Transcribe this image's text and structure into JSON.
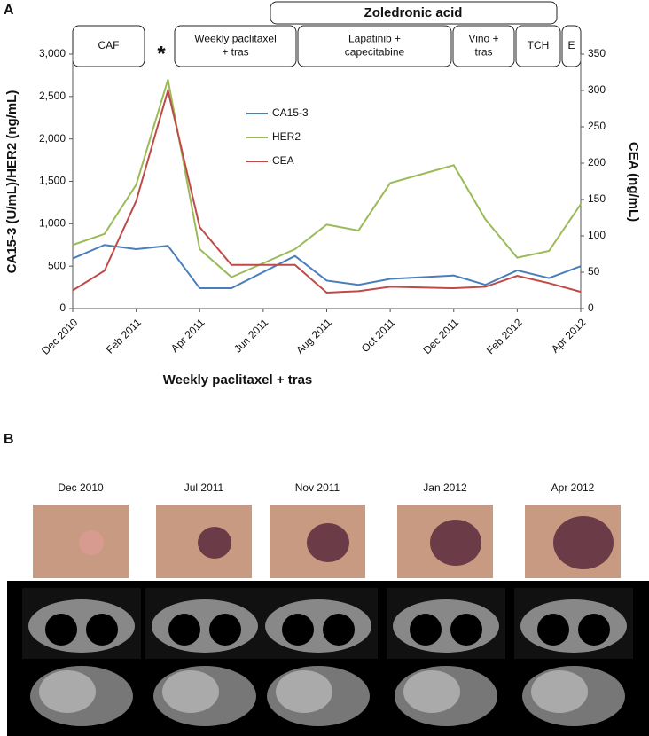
{
  "chart_data": {
    "type": "line",
    "panel_label": "A",
    "x_label": "Weekly paclitaxel + tras",
    "y_label": "CA15-3 (U/mL)/HER2 (ng/mL)",
    "y2_label": "CEA (ng/mL)",
    "regimen_bar": "Zoledronic acid",
    "marker": "*",
    "regimens": [
      [
        "CAF"
      ],
      [
        "Weekly paclitaxel",
        "+ tras"
      ],
      [
        "Lapatinib +",
        "capecitabine"
      ],
      [
        "Vino +",
        "tras"
      ],
      [
        "TCH"
      ],
      [
        "E"
      ]
    ],
    "x": [
      "2010-12",
      "2011-01",
      "2011-02",
      "2011-03",
      "2011-04",
      "2011-05",
      "2011-07",
      "2011-08",
      "2011-09",
      "2011-10",
      "2011-12",
      "2012-01",
      "2012-02",
      "2012-03",
      "2012-04"
    ],
    "xlim": [
      "2010-12",
      "2012-04"
    ],
    "xticks": [
      {
        "value": "2010-12",
        "label": "Dec 2010"
      },
      {
        "value": "2011-02",
        "label": "Feb 2011"
      },
      {
        "value": "2011-04",
        "label": "Apr 2011"
      },
      {
        "value": "2011-06",
        "label": "Jun 2011"
      },
      {
        "value": "2011-08",
        "label": "Aug 2011"
      },
      {
        "value": "2011-10",
        "label": "Oct 2011"
      },
      {
        "value": "2011-12",
        "label": "Dec 2011"
      },
      {
        "value": "2012-02",
        "label": "Feb 2012"
      },
      {
        "value": "2012-04",
        "label": "Apr 2012"
      }
    ],
    "ylim": [
      0,
      3000
    ],
    "yticks": [
      0,
      500,
      {
        "value": 1000,
        "label": "1,000"
      },
      {
        "value": 1500,
        "label": "1,500"
      },
      {
        "value": 2000,
        "label": "2,000"
      },
      {
        "value": 2500,
        "label": "2,500"
      },
      {
        "value": 3000,
        "label": "3,000"
      }
    ],
    "y2lim": [
      0,
      350
    ],
    "y2ticks": [
      0,
      50,
      100,
      150,
      200,
      250,
      300,
      350
    ],
    "series": [
      {
        "name": "CA15-3",
        "color": "#4a7ebb",
        "values": [
          590,
          750,
          700,
          740,
          240,
          240,
          620,
          330,
          280,
          350,
          390,
          280,
          450,
          360,
          500
        ]
      },
      {
        "name": "HER2",
        "color": "#9bbb59",
        "values": [
          750,
          880,
          1460,
          2700,
          700,
          370,
          700,
          990,
          920,
          1480,
          1690,
          1050,
          600,
          680,
          1230
        ]
      },
      {
        "name": "CEA",
        "color": "#be4b48",
        "axis": "y2",
        "values": [
          25,
          52,
          148,
          300,
          112,
          60,
          60,
          22,
          24,
          30,
          28,
          30,
          45,
          35,
          23
        ]
      }
    ]
  },
  "panel_b": {
    "label": "B",
    "dates": [
      "Dec 2010",
      "Jul 2011",
      "Nov 2011",
      "Jan 2012",
      "Apr 2012"
    ]
  }
}
